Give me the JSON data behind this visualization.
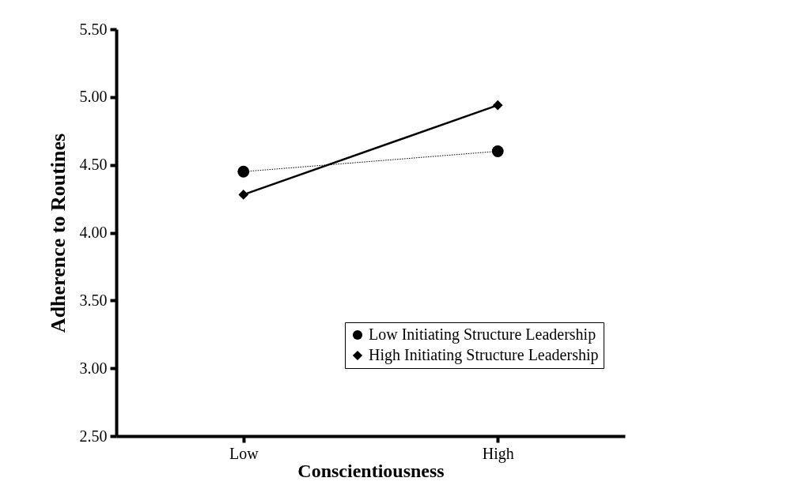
{
  "chart_data": {
    "type": "line",
    "xlabel": "Conscientiousness",
    "ylabel": "Adherence to Routines",
    "categories": [
      "Low",
      "High"
    ],
    "series": [
      {
        "name": "Low Initiating Structure Leadership",
        "color": "#000000",
        "values": [
          4.45,
          4.6
        ],
        "marker": "circle",
        "line_style": "dotted"
      },
      {
        "name": "High Initiating Structure Leadership",
        "color": "#000000",
        "values": [
          4.28,
          4.94
        ],
        "marker": "diamond",
        "line_style": "solid"
      }
    ],
    "ylim": [
      2.5,
      5.5
    ],
    "yticks": [
      {
        "value": 2.5,
        "label": "2.50"
      },
      {
        "value": 3,
        "label": "3.00"
      },
      {
        "value": 3.5,
        "label": "3.50"
      },
      {
        "value": 4,
        "label": "4.00"
      },
      {
        "value": 4.5,
        "label": "4.50"
      },
      {
        "value": 5,
        "label": "5.00"
      },
      {
        "value": 5.5,
        "label": "5.50"
      }
    ],
    "grid": false,
    "legend": "right"
  }
}
